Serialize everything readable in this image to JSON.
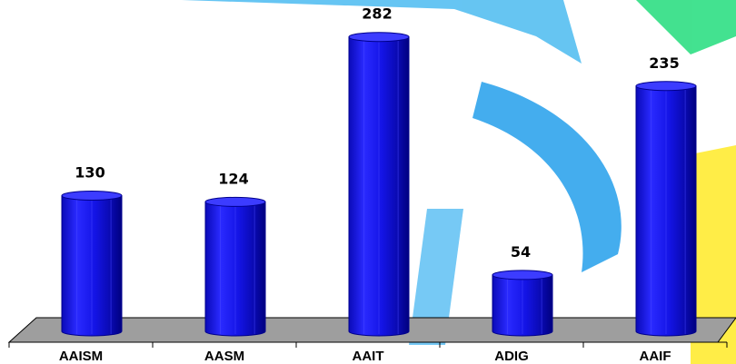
{
  "chart_data": {
    "type": "bar",
    "categories": [
      "AAISM",
      "AASM",
      "AAIT",
      "ADIG",
      "AAIF"
    ],
    "values": [
      130,
      124,
      282,
      54,
      235
    ],
    "title": "",
    "xlabel": "",
    "ylabel": "",
    "ylim": [
      0,
      300
    ],
    "grid": false,
    "legend": "none",
    "bar_style": "3d-cylinder",
    "colors": {
      "bar": "#1414e6",
      "bar_dark": "#00008c",
      "bar_light": "#3c3cff",
      "floor": "#9e9e9e",
      "watermark_blue": "#1ea5ee",
      "watermark_green": "#39e08a",
      "watermark_yellow": "#ffe933"
    }
  }
}
